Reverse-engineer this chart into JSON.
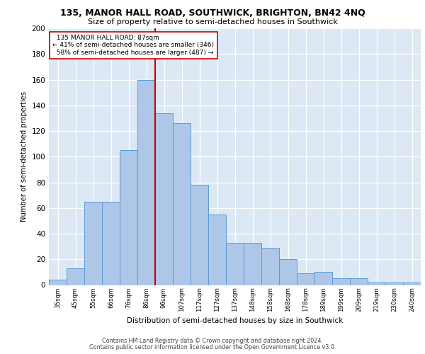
{
  "title": "135, MANOR HALL ROAD, SOUTHWICK, BRIGHTON, BN42 4NQ",
  "subtitle": "Size of property relative to semi-detached houses in Southwick",
  "xlabel": "Distribution of semi-detached houses by size in Southwick",
  "ylabel": "Number of semi-detached properties",
  "bar_labels": [
    "35sqm",
    "45sqm",
    "55sqm",
    "66sqm",
    "76sqm",
    "86sqm",
    "96sqm",
    "107sqm",
    "117sqm",
    "127sqm",
    "137sqm",
    "148sqm",
    "158sqm",
    "168sqm",
    "178sqm",
    "189sqm",
    "199sqm",
    "209sqm",
    "219sqm",
    "230sqm",
    "240sqm"
  ],
  "bar_values": [
    4,
    13,
    65,
    65,
    105,
    160,
    134,
    126,
    78,
    55,
    33,
    33,
    29,
    20,
    9,
    10,
    5,
    5,
    2,
    2,
    2
  ],
  "bar_color": "#aec6e8",
  "bar_edge_color": "#5b9bd5",
  "subject_label": "135 MANOR HALL ROAD: 87sqm",
  "pct_smaller": 41,
  "pct_larger": 58,
  "n_smaller": 346,
  "n_larger": 487,
  "vline_color": "#cc0000",
  "ylim": [
    0,
    200
  ],
  "yticks": [
    0,
    20,
    40,
    60,
    80,
    100,
    120,
    140,
    160,
    180,
    200
  ],
  "bg_color": "#dce9f5",
  "footer1": "Contains HM Land Registry data © Crown copyright and database right 2024.",
  "footer2": "Contains public sector information licensed under the Open Government Licence v3.0."
}
